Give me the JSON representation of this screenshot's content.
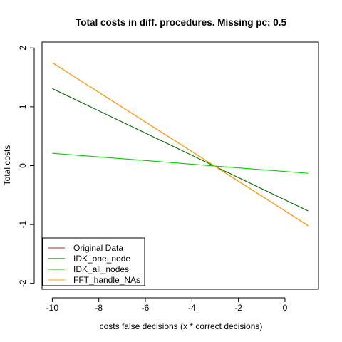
{
  "chart_data": {
    "type": "line",
    "title": "Total costs in diff. procedures. Missing pc: 0.5",
    "xlabel": "costs false decisions (x * correct decisions)",
    "ylabel": "Total costs",
    "xlim": [
      -10.44,
      1.44
    ],
    "ylim": [
      -2.1,
      2.1
    ],
    "x_ticks": [
      -10,
      -8,
      -6,
      -4,
      -2,
      0
    ],
    "x_tick_labels": [
      "-10",
      "-8",
      "-6",
      "-4",
      "-2",
      "0"
    ],
    "y_ticks": [
      -2,
      -1,
      0,
      1,
      2
    ],
    "y_tick_labels": [
      "-2",
      "-1",
      "0",
      "1",
      "2"
    ],
    "grid": false,
    "legend_position": "bottom-left",
    "series": [
      {
        "name": "Original Data",
        "color": "#b22222",
        "x": [
          -10,
          1
        ],
        "y": [
          1.75,
          -1.02
        ]
      },
      {
        "name": "IDK_one_node",
        "color": "#006400",
        "x": [
          -10,
          1
        ],
        "y": [
          1.31,
          -0.77
        ]
      },
      {
        "name": "IDK_all_nodes",
        "color": "#00cd00",
        "x": [
          -10,
          1
        ],
        "y": [
          0.21,
          -0.13
        ]
      },
      {
        "name": "FFT_handle_NAs",
        "color": "#ffa500",
        "x": [
          -10,
          1
        ],
        "y": [
          1.75,
          -1.02
        ]
      }
    ]
  }
}
